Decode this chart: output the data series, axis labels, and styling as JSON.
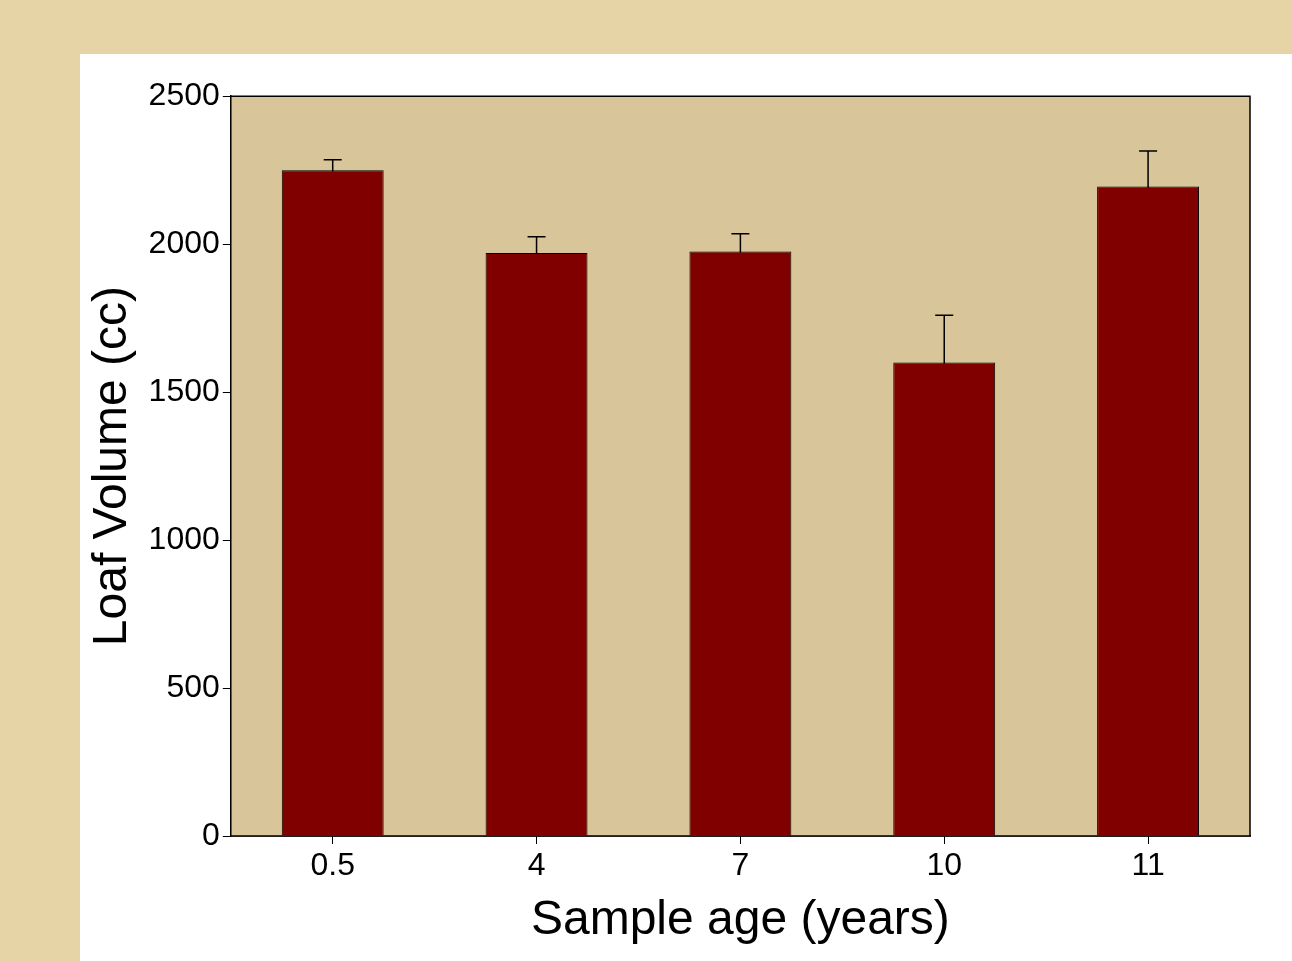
{
  "chart_data": {
    "type": "bar",
    "xlabel": "Sample age (years)",
    "ylabel": "Loaf Volume (cc)",
    "categories": [
      "0.5",
      "4",
      "7",
      "10",
      "11"
    ],
    "values": [
      2250,
      1970,
      1975,
      1600,
      2195
    ],
    "errors": [
      35,
      55,
      60,
      160,
      120
    ],
    "color": "#800000",
    "ylim": [
      0,
      2500
    ],
    "yticks": [
      0,
      500,
      1000,
      1500,
      2000,
      2500
    ],
    "grid": false,
    "legend": false
  }
}
